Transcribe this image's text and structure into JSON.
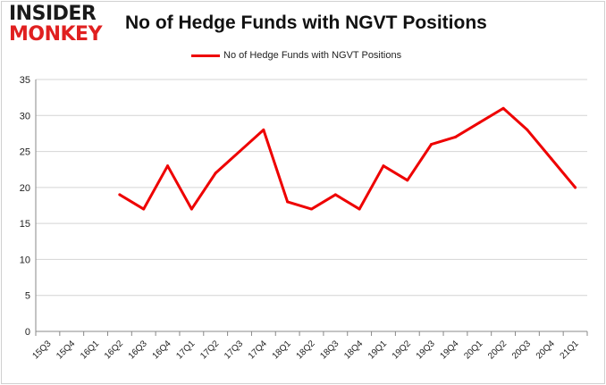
{
  "logo": {
    "line1": "INSIDER",
    "line2": "MONKEY"
  },
  "chart_data": {
    "type": "line",
    "title": "No of Hedge Funds with NGVT Positions",
    "xlabel": "",
    "ylabel": "",
    "categories": [
      "15Q3",
      "15Q4",
      "16Q1",
      "16Q2",
      "16Q3",
      "16Q4",
      "17Q1",
      "17Q2",
      "17Q3",
      "17Q4",
      "18Q1",
      "18Q2",
      "18Q3",
      "18Q4",
      "19Q1",
      "19Q2",
      "19Q3",
      "19Q4",
      "20Q1",
      "20Q2",
      "20Q3",
      "20Q4",
      "21Q1"
    ],
    "series": [
      {
        "name": "No of Hedge Funds with NGVT Positions",
        "color": "#ee0000",
        "values": [
          null,
          null,
          null,
          19,
          17,
          23,
          17,
          22,
          25,
          28,
          18,
          17,
          19,
          17,
          23,
          21,
          26,
          27,
          29,
          31,
          28,
          24,
          20
        ]
      }
    ],
    "ylim": [
      0,
      35
    ],
    "yticks": [
      0,
      5,
      10,
      15,
      20,
      25,
      30,
      35
    ],
    "grid": "horizontal",
    "legend": "top-center"
  }
}
